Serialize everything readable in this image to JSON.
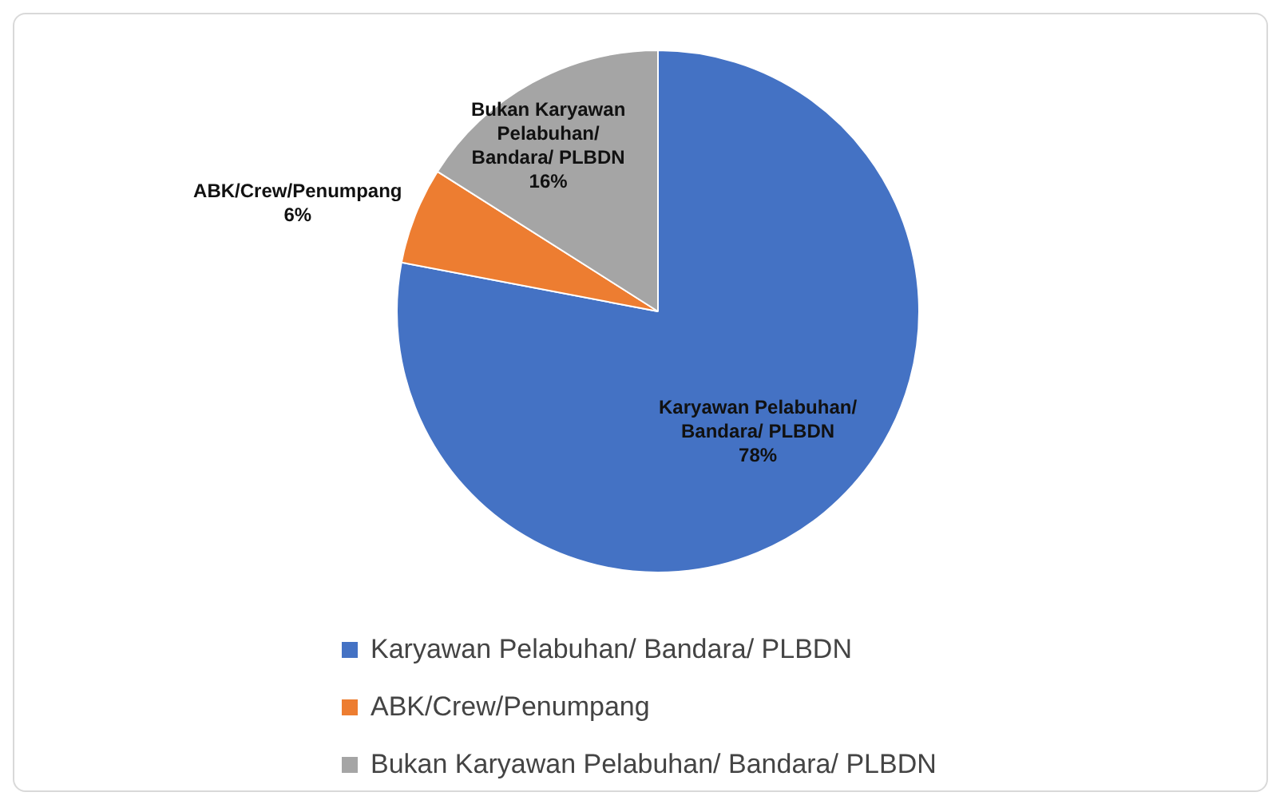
{
  "chart_data": {
    "type": "pie",
    "categories": [
      "Karyawan Pelabuhan/ Bandara/ PLBDN",
      "ABK/Crew/Penumpang",
      "Bukan Karyawan Pelabuhan/ Bandara/ PLBDN"
    ],
    "values": [
      78,
      6,
      16
    ],
    "colors": [
      "#4472c4",
      "#ed7d31",
      "#a5a5a5"
    ],
    "value_labels": [
      "78%",
      "6%",
      "16%"
    ],
    "legend": "bottom"
  }
}
